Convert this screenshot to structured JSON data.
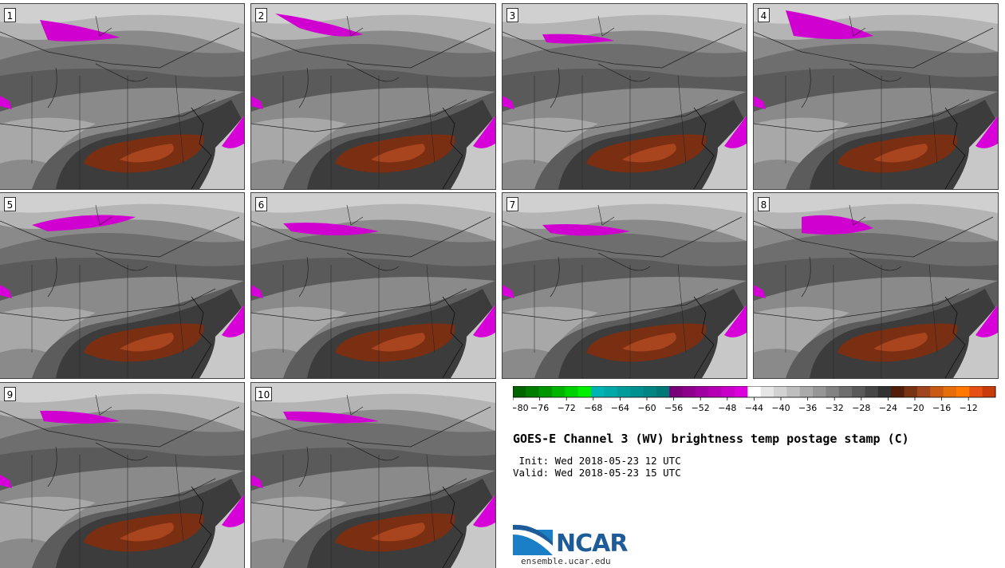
{
  "panels": [
    {
      "label": "1"
    },
    {
      "label": "2"
    },
    {
      "label": "3"
    },
    {
      "label": "4"
    },
    {
      "label": "5"
    },
    {
      "label": "6"
    },
    {
      "label": "7"
    },
    {
      "label": "8"
    },
    {
      "label": "9"
    },
    {
      "label": "10"
    }
  ],
  "colorbar": {
    "ticks": [
      "−80",
      "−76",
      "−72",
      "−68",
      "−64",
      "−60",
      "−56",
      "−52",
      "−48",
      "−44",
      "−40",
      "−36",
      "−32",
      "−28",
      "−24",
      "−20",
      "−16",
      "−12"
    ],
    "colors": [
      "#006400",
      "#007d00",
      "#009600",
      "#00b400",
      "#00d200",
      "#00f000",
      "#00b4b4",
      "#00a8a8",
      "#009c9c",
      "#009090",
      "#008484",
      "#007878",
      "#780078",
      "#8c008c",
      "#a000a0",
      "#b400b4",
      "#c800c8",
      "#dc00dc",
      "#ffffff",
      "#e6e6e6",
      "#d2d2d2",
      "#bebebe",
      "#aaaaaa",
      "#969696",
      "#828282",
      "#6e6e6e",
      "#5a5a5a",
      "#464646",
      "#323232",
      "#501e0a",
      "#783214",
      "#a0461e",
      "#c85a14",
      "#e66e0a",
      "#ff7800",
      "#e65014",
      "#c83c0a"
    ]
  },
  "title": "GOES-E Channel 3 (WV) brightness temp postage stamp (C)",
  "init_line": " Init: Wed 2018-05-23 12 UTC",
  "valid_line": "Valid: Wed 2018-05-23 15 UTC",
  "logo_text": "NCAR",
  "url": "ensemble.ucar.edu"
}
